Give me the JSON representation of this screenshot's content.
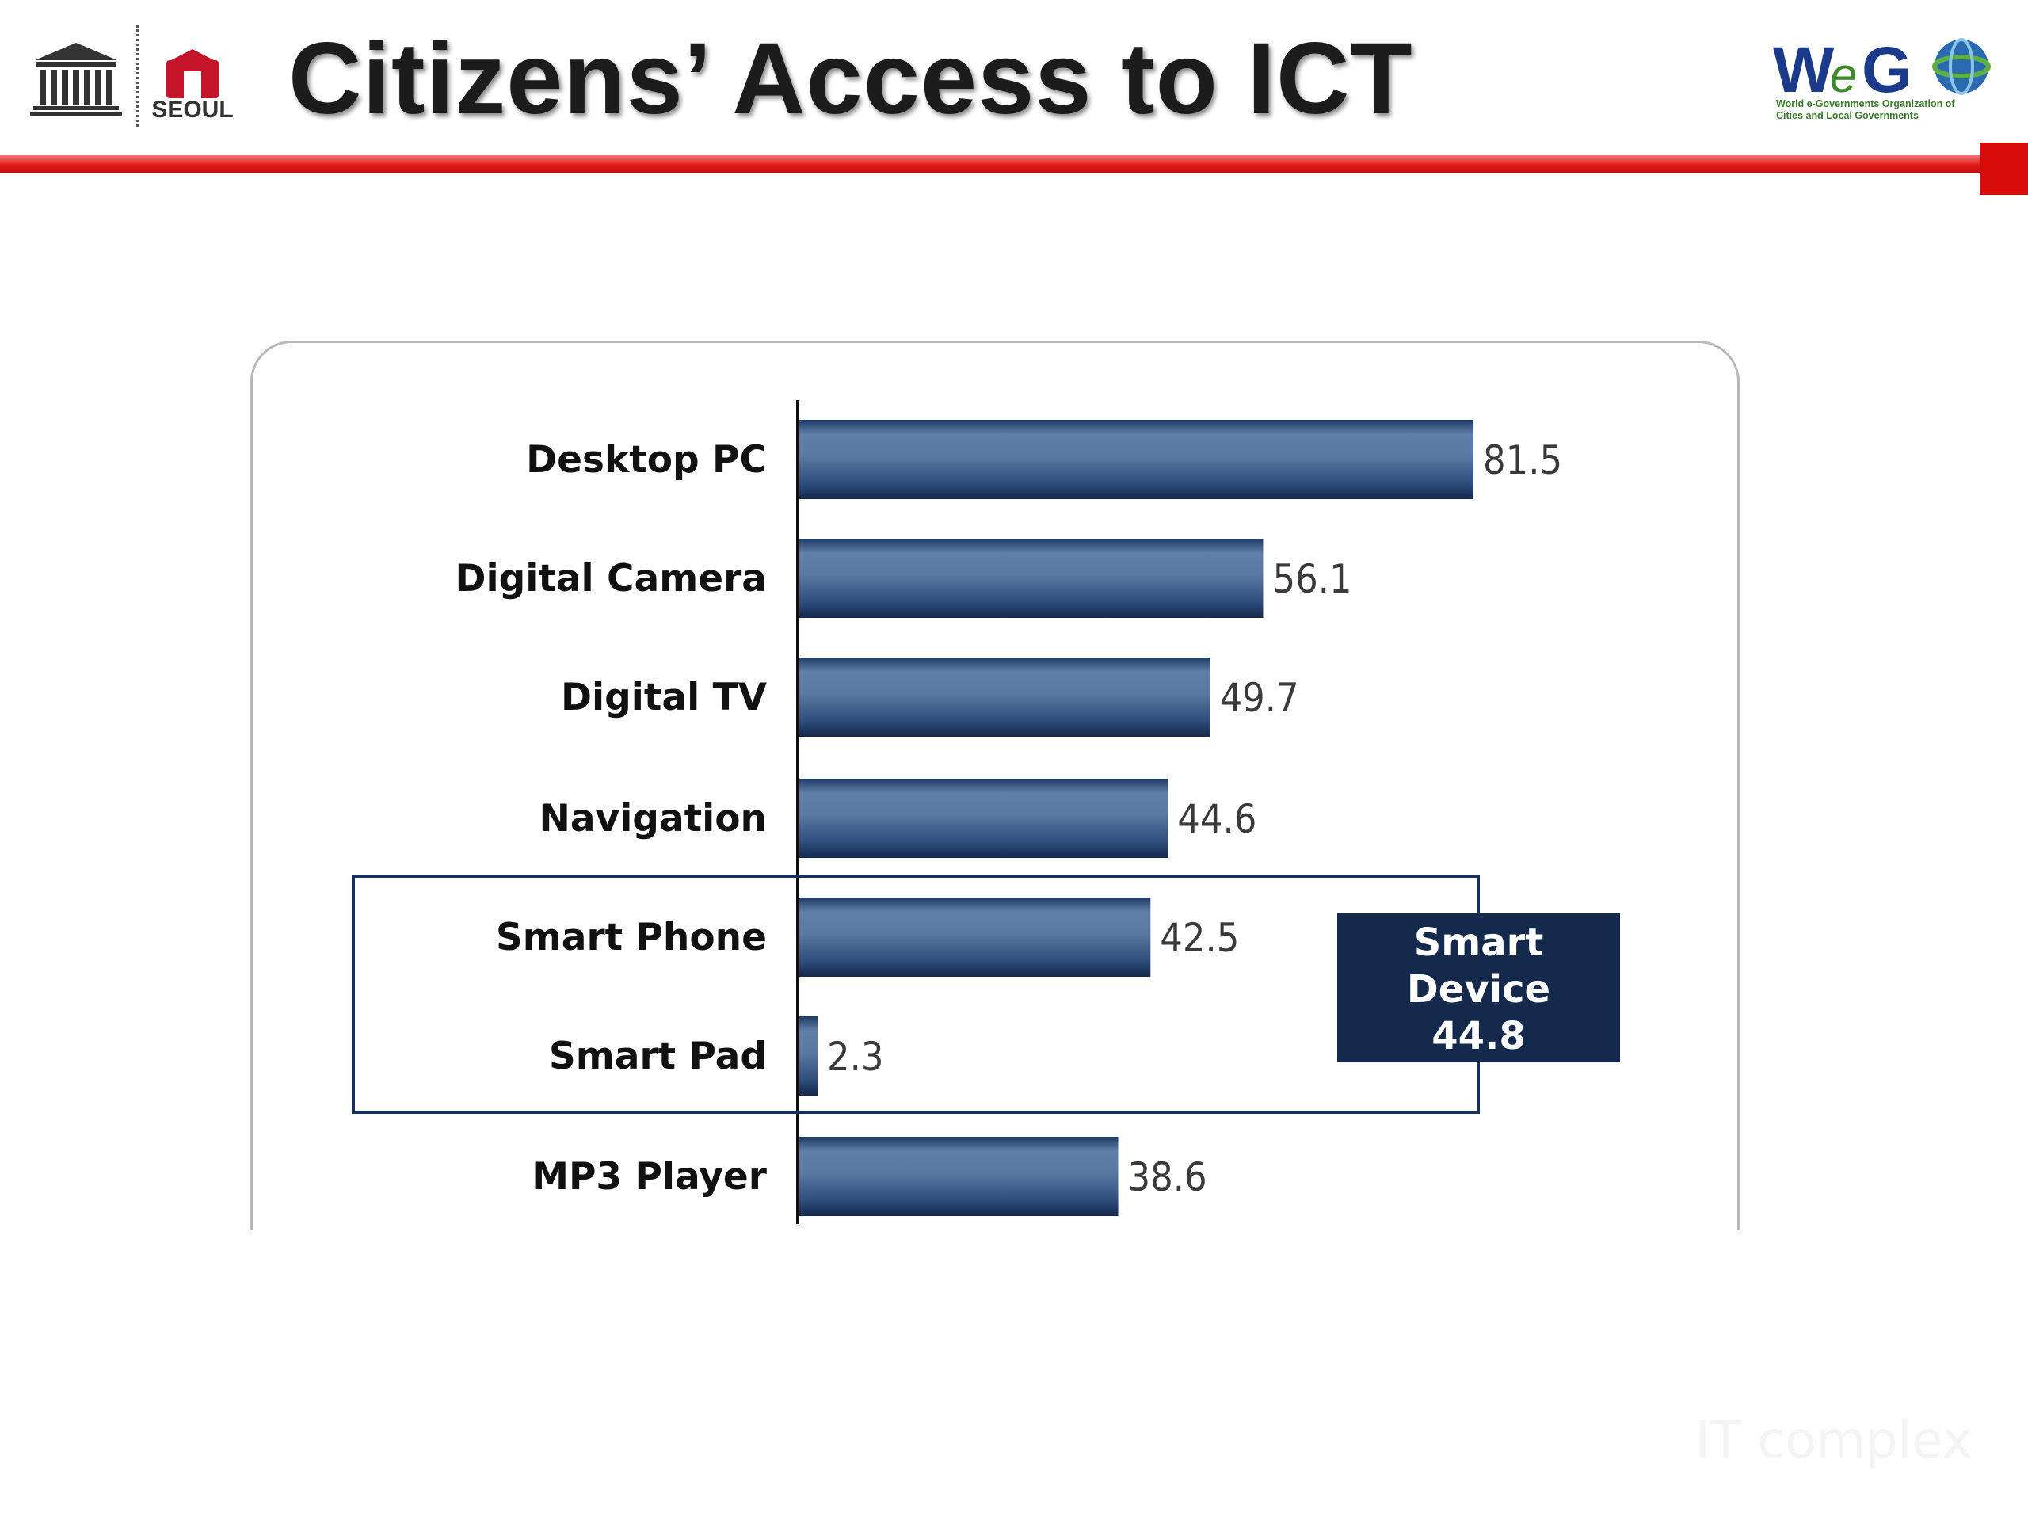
{
  "header": {
    "title": "Citizens’ Access to ICT",
    "logos": {
      "left_1": {
        "name": "unesco-logo",
        "text": "UNESCO"
      },
      "left_2": {
        "name": "seoul-logo",
        "text": "SEOUL"
      },
      "right": {
        "name": "wego-logo",
        "text": "WeGO",
        "subtitle_lines": [
          "World e-Governments Organization of",
          "Cities and Local Governments"
        ]
      }
    },
    "accent_color": "#d80b0b"
  },
  "chart_data": {
    "type": "bar",
    "orientation": "horizontal",
    "categories": [
      "Desktop PC",
      "Digital Camera",
      "Digital TV",
      "Navigation",
      "Smart Phone",
      "Smart Pad",
      "MP3 Player"
    ],
    "values": [
      81.5,
      56.1,
      49.7,
      44.6,
      42.5,
      2.3,
      38.6
    ],
    "value_labels": [
      "81.5",
      "56.1",
      "49.7",
      "44.6",
      "42.5",
      "2.3",
      "38.6"
    ],
    "bar_color": "#2f4f7a",
    "grid": false,
    "legend": "none",
    "highlight": {
      "categories": [
        "Smart Phone",
        "Smart Pad"
      ],
      "label_lines": [
        "Smart",
        "Device",
        "44.8"
      ],
      "box_color": "#142a4c"
    }
  },
  "watermark": "IT complex"
}
